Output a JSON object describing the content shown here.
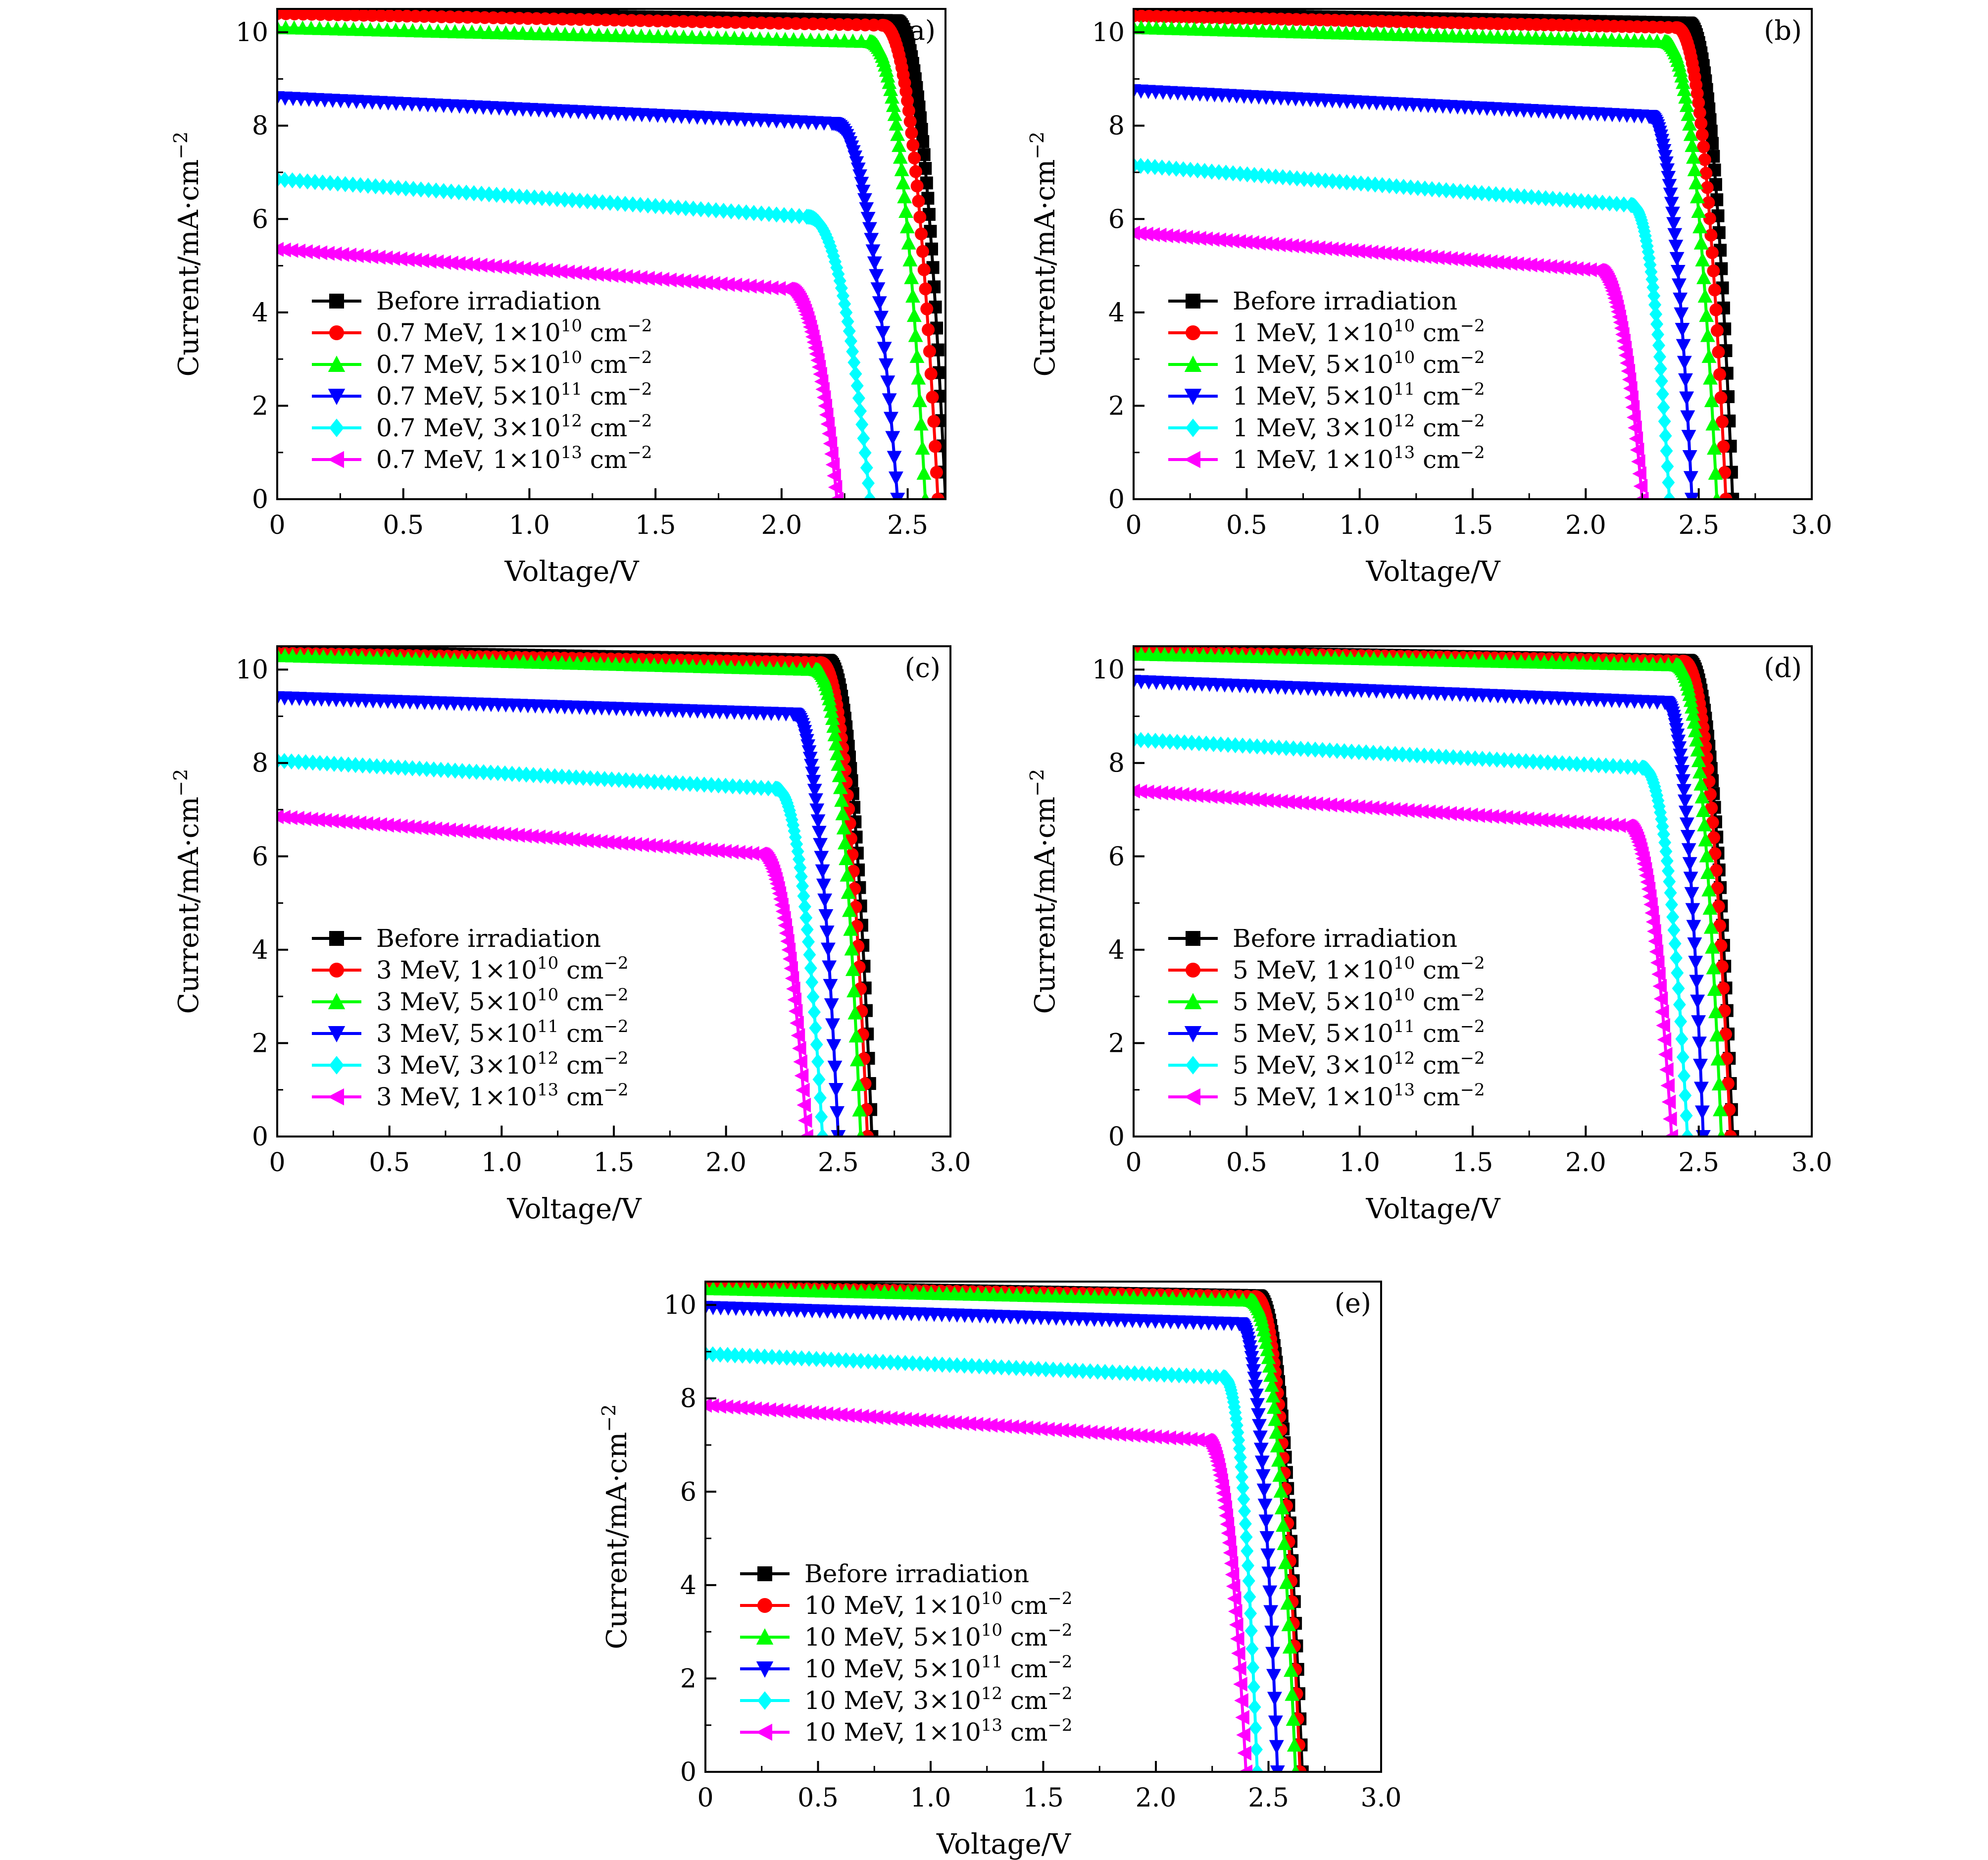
{
  "chart_data": [
    {
      "panel_label": "(a)",
      "type": "line",
      "xlabel": "Voltage/V",
      "ylabel": "Current/mA·cm⁻²",
      "xlim": [
        0,
        2.65
      ],
      "ylim": [
        0,
        10.5
      ],
      "xticks": [
        "0",
        "0.5",
        "1.0",
        "1.5",
        "2.0",
        "2.5"
      ],
      "yticks": [
        "0",
        "2",
        "4",
        "6",
        "8",
        "10"
      ],
      "legend_position": "lower-left",
      "series": [
        {
          "name": "Before irradiation",
          "color": "#000000",
          "marker": "square",
          "isc": 10.45,
          "knee_v": 2.45,
          "knee_i": 10.25,
          "voc": 2.65
        },
        {
          "name": "0.7 MeV, 1×10¹⁰ cm⁻²",
          "color": "#ff0000",
          "marker": "circle",
          "isc": 10.4,
          "knee_v": 2.4,
          "knee_i": 10.15,
          "voc": 2.62
        },
        {
          "name": "0.7 MeV, 5×10¹⁰ cm⁻²",
          "color": "#00ff00",
          "marker": "triangle-up",
          "isc": 10.1,
          "knee_v": 2.35,
          "knee_i": 9.8,
          "voc": 2.57
        },
        {
          "name": "0.7 MeV, 5×10¹¹ cm⁻²",
          "color": "#0000ff",
          "marker": "triangle-down",
          "isc": 8.6,
          "knee_v": 2.2,
          "knee_i": 8.05,
          "voc": 2.46
        },
        {
          "name": "0.7 MeV, 3×10¹² cm⁻²",
          "color": "#00ffff",
          "marker": "diamond",
          "isc": 6.85,
          "knee_v": 2.1,
          "knee_i": 6.05,
          "voc": 2.35
        },
        {
          "name": "0.7 MeV, 1×10¹³ cm⁻²",
          "color": "#ff00ff",
          "marker": "triangle-left",
          "isc": 5.35,
          "knee_v": 2.02,
          "knee_i": 4.5,
          "voc": 2.22
        }
      ]
    },
    {
      "panel_label": "(b)",
      "type": "line",
      "xlabel": "Voltage/V",
      "ylabel": "Current/mA·cm⁻²",
      "xlim": [
        0,
        3.0
      ],
      "ylim": [
        0,
        10.5
      ],
      "xticks": [
        "0",
        "0.5",
        "1.0",
        "1.5",
        "2.0",
        "2.5",
        "3.0"
      ],
      "yticks": [
        "0",
        "2",
        "4",
        "6",
        "8",
        "10"
      ],
      "legend_position": "lower-left",
      "series": [
        {
          "name": "Before irradiation",
          "color": "#000000",
          "marker": "square",
          "isc": 10.4,
          "knee_v": 2.45,
          "knee_i": 10.2,
          "voc": 2.65
        },
        {
          "name": "1 MeV, 1×10¹⁰ cm⁻²",
          "color": "#ff0000",
          "marker": "circle",
          "isc": 10.35,
          "knee_v": 2.4,
          "knee_i": 10.1,
          "voc": 2.62
        },
        {
          "name": "1 MeV, 5×10¹⁰ cm⁻²",
          "color": "#00ff00",
          "marker": "triangle-up",
          "isc": 10.1,
          "knee_v": 2.35,
          "knee_i": 9.8,
          "voc": 2.58
        },
        {
          "name": "1 MeV, 5×10¹¹ cm⁻²",
          "color": "#0000ff",
          "marker": "triangle-down",
          "isc": 8.75,
          "knee_v": 2.28,
          "knee_i": 8.2,
          "voc": 2.47
        },
        {
          "name": "1 MeV, 3×10¹² cm⁻²",
          "color": "#00ffff",
          "marker": "diamond",
          "isc": 7.15,
          "knee_v": 2.2,
          "knee_i": 6.3,
          "voc": 2.37
        },
        {
          "name": "1 MeV, 1×10¹³ cm⁻²",
          "color": "#ff00ff",
          "marker": "triangle-left",
          "isc": 5.7,
          "knee_v": 2.05,
          "knee_i": 4.9,
          "voc": 2.25
        }
      ]
    },
    {
      "panel_label": "(c)",
      "type": "line",
      "xlabel": "Voltage/V",
      "ylabel": "Current/mA·cm⁻²",
      "xlim": [
        0,
        3.0
      ],
      "ylim": [
        0,
        10.5
      ],
      "xticks": [
        "0",
        "0.5",
        "1.0",
        "1.5",
        "2.0",
        "2.5",
        "3.0"
      ],
      "yticks": [
        "0",
        "2",
        "4",
        "6",
        "8",
        "10"
      ],
      "legend_position": "lower-left",
      "series": [
        {
          "name": "Before irradiation",
          "color": "#000000",
          "marker": "square",
          "isc": 10.4,
          "knee_v": 2.45,
          "knee_i": 10.2,
          "voc": 2.65
        },
        {
          "name": "3 MeV, 1×10¹⁰ cm⁻²",
          "color": "#ff0000",
          "marker": "circle",
          "isc": 10.35,
          "knee_v": 2.42,
          "knee_i": 10.15,
          "voc": 2.63
        },
        {
          "name": "3 MeV, 5×10¹⁰ cm⁻²",
          "color": "#00ff00",
          "marker": "triangle-up",
          "isc": 10.3,
          "knee_v": 2.4,
          "knee_i": 10.0,
          "voc": 2.6
        },
        {
          "name": "3 MeV, 5×10¹¹ cm⁻²",
          "color": "#0000ff",
          "marker": "triangle-down",
          "isc": 9.4,
          "knee_v": 2.3,
          "knee_i": 9.05,
          "voc": 2.5
        },
        {
          "name": "3 MeV, 3×10¹² cm⁻²",
          "color": "#00ffff",
          "marker": "diamond",
          "isc": 8.05,
          "knee_v": 2.22,
          "knee_i": 7.45,
          "voc": 2.43
        },
        {
          "name": "3 MeV, 1×10¹³ cm⁻²",
          "color": "#ff00ff",
          "marker": "triangle-left",
          "isc": 6.85,
          "knee_v": 2.15,
          "knee_i": 6.05,
          "voc": 2.36
        }
      ]
    },
    {
      "panel_label": "(d)",
      "type": "line",
      "xlabel": "Voltage/V",
      "ylabel": "Current/mA·cm⁻²",
      "xlim": [
        0,
        3.0
      ],
      "ylim": [
        0,
        10.5
      ],
      "xticks": [
        "0",
        "0.5",
        "1.0",
        "1.5",
        "2.0",
        "2.5",
        "3.0"
      ],
      "yticks": [
        "0",
        "2",
        "4",
        "6",
        "8",
        "10"
      ],
      "legend_position": "lower-left",
      "series": [
        {
          "name": "Before irradiation",
          "color": "#000000",
          "marker": "square",
          "isc": 10.4,
          "knee_v": 2.45,
          "knee_i": 10.2,
          "voc": 2.65
        },
        {
          "name": "5 MeV, 1×10¹⁰ cm⁻²",
          "color": "#ff0000",
          "marker": "circle",
          "isc": 10.38,
          "knee_v": 2.43,
          "knee_i": 10.18,
          "voc": 2.64
        },
        {
          "name": "5 MeV, 5×10¹⁰ cm⁻²",
          "color": "#00ff00",
          "marker": "triangle-up",
          "isc": 10.33,
          "knee_v": 2.4,
          "knee_i": 10.1,
          "voc": 2.6
        },
        {
          "name": "5 MeV, 5×10¹¹ cm⁻²",
          "color": "#0000ff",
          "marker": "triangle-down",
          "isc": 9.75,
          "knee_v": 2.35,
          "knee_i": 9.3,
          "voc": 2.52
        },
        {
          "name": "5 MeV, 3×10¹² cm⁻²",
          "color": "#00ffff",
          "marker": "diamond",
          "isc": 8.5,
          "knee_v": 2.25,
          "knee_i": 7.9,
          "voc": 2.45
        },
        {
          "name": "5 MeV, 1×10¹³ cm⁻²",
          "color": "#ff00ff",
          "marker": "triangle-left",
          "isc": 7.4,
          "knee_v": 2.18,
          "knee_i": 6.65,
          "voc": 2.38
        }
      ]
    },
    {
      "panel_label": "(e)",
      "type": "line",
      "xlabel": "Voltage/V",
      "ylabel": "Current/mA·cm⁻²",
      "xlim": [
        0,
        3.0
      ],
      "ylim": [
        0,
        10.5
      ],
      "xticks": [
        "0",
        "0.5",
        "1.0",
        "1.5",
        "2.0",
        "2.5",
        "3.0"
      ],
      "yticks": [
        "0",
        "2",
        "4",
        "6",
        "8",
        "10"
      ],
      "legend_position": "lower-left",
      "series": [
        {
          "name": "Before irradiation",
          "color": "#000000",
          "marker": "square",
          "isc": 10.4,
          "knee_v": 2.45,
          "knee_i": 10.2,
          "voc": 2.65
        },
        {
          "name": "10 MeV, 1×10¹⁰ cm⁻²",
          "color": "#ff0000",
          "marker": "circle",
          "isc": 10.38,
          "knee_v": 2.44,
          "knee_i": 10.18,
          "voc": 2.64
        },
        {
          "name": "10 MeV, 5×10¹⁰ cm⁻²",
          "color": "#00ff00",
          "marker": "triangle-up",
          "isc": 10.35,
          "knee_v": 2.42,
          "knee_i": 10.1,
          "voc": 2.62
        },
        {
          "name": "10 MeV, 5×10¹¹ cm⁻²",
          "color": "#0000ff",
          "marker": "triangle-down",
          "isc": 9.95,
          "knee_v": 2.37,
          "knee_i": 9.6,
          "voc": 2.54
        },
        {
          "name": "10 MeV, 3×10¹² cm⁻²",
          "color": "#00ffff",
          "marker": "diamond",
          "isc": 8.95,
          "knee_v": 2.3,
          "knee_i": 8.45,
          "voc": 2.45
        },
        {
          "name": "10 MeV, 1×10¹³ cm⁻²",
          "color": "#ff00ff",
          "marker": "triangle-left",
          "isc": 7.85,
          "knee_v": 2.22,
          "knee_i": 7.1,
          "voc": 2.4
        }
      ]
    }
  ]
}
